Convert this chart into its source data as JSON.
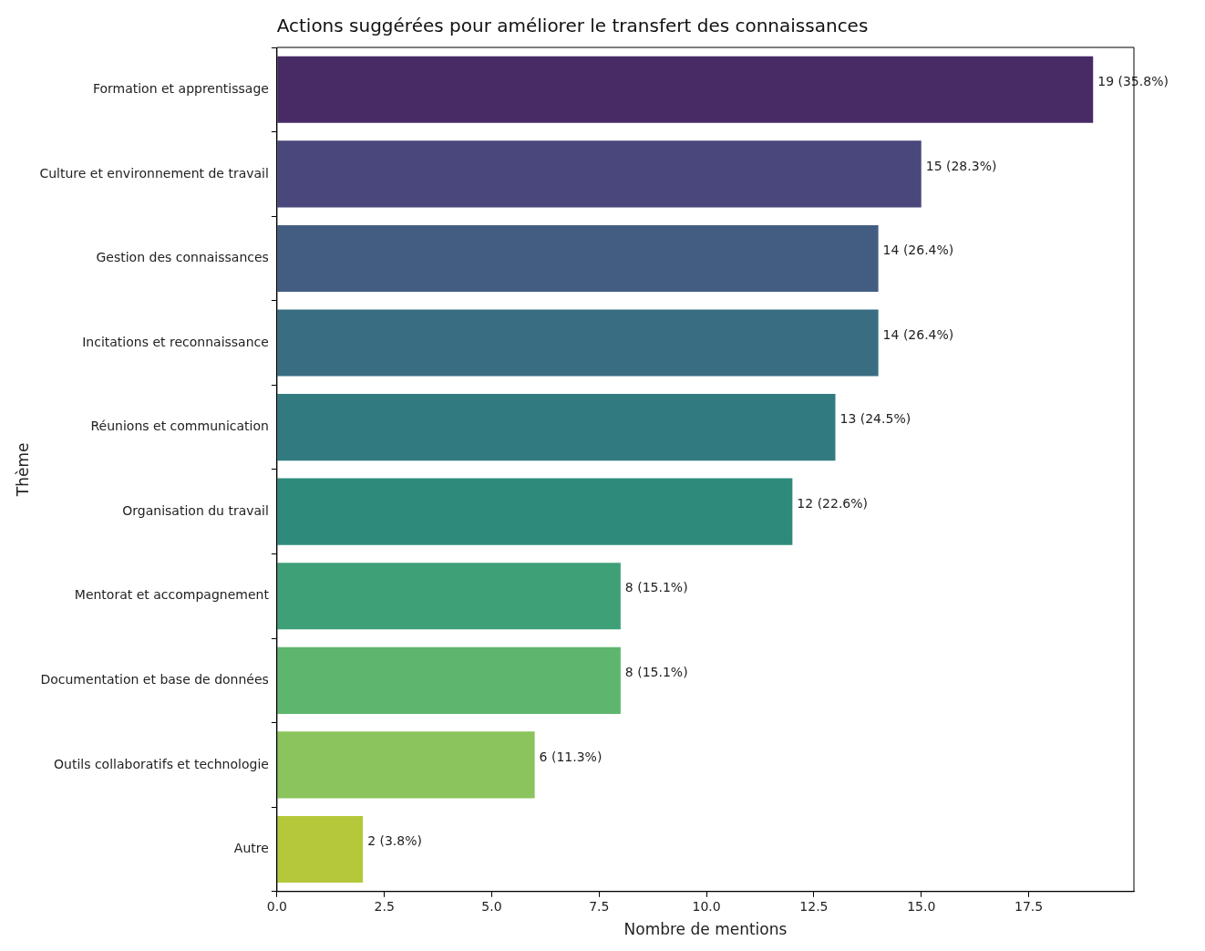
{
  "chart_data": {
    "type": "bar",
    "orientation": "horizontal",
    "title": "Actions suggérées pour améliorer le transfert des connaissances",
    "xlabel": "Nombre de mentions",
    "ylabel": "Thème",
    "categories": [
      "Formation et apprentissage",
      "Culture et environnement de travail",
      "Gestion des connaissances",
      "Incitations et reconnaissance",
      "Réunions et communication",
      "Organisation du travail",
      "Mentorat et accompagnement",
      "Documentation et base de données",
      "Outils collaboratifs et technologie",
      "Autre"
    ],
    "values": [
      19,
      15,
      14,
      14,
      13,
      12,
      8,
      8,
      6,
      2
    ],
    "value_labels": [
      "19 (35.8%)",
      "15 (28.3%)",
      "14 (26.4%)",
      "14 (26.4%)",
      "13 (24.5%)",
      "12 (22.6%)",
      "8 (15.1%)",
      "8 (15.1%)",
      "6 (11.3%)",
      "2 (3.8%)"
    ],
    "colors": [
      "#482a65",
      "#4a477c",
      "#435d82",
      "#396d82",
      "#317b80",
      "#2e8b7c",
      "#3ea077",
      "#5db56e",
      "#8bc45c",
      "#b4c83a"
    ],
    "xlim": [
      0,
      19.95
    ],
    "xticks": [
      {
        "value": 0,
        "label": "0.0"
      },
      {
        "value": 2.5,
        "label": "2.5"
      },
      {
        "value": 5,
        "label": "5.0"
      },
      {
        "value": 7.5,
        "label": "7.5"
      },
      {
        "value": 10,
        "label": "10.0"
      },
      {
        "value": 12.5,
        "label": "12.5"
      },
      {
        "value": 15,
        "label": "15.0"
      },
      {
        "value": 17.5,
        "label": "17.5"
      }
    ],
    "grid": false,
    "legend": false
  }
}
